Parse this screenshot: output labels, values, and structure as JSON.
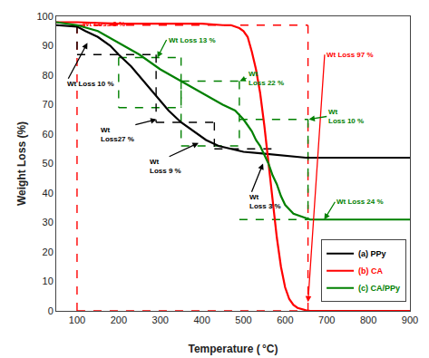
{
  "chart_data": {
    "type": "line",
    "xlabel": "Temperature ( °C)",
    "ylabel": "Weight Loss (%)",
    "xlim": [
      50,
      900
    ],
    "ylim": [
      0,
      100
    ],
    "xticks": [
      100,
      200,
      300,
      400,
      500,
      600,
      700,
      800,
      900
    ],
    "yticks": [
      0,
      10,
      20,
      30,
      40,
      50,
      60,
      70,
      80,
      90,
      100
    ],
    "grid": false,
    "legend": "lower right",
    "series": [
      {
        "name": "(a) PPy",
        "color": "black",
        "x": [
          50,
          100,
          120,
          150,
          180,
          200,
          230,
          260,
          290,
          320,
          350,
          380,
          410,
          440,
          470,
          500,
          540,
          580,
          620,
          650,
          700,
          800,
          900
        ],
        "values": [
          97,
          96.5,
          95,
          93,
          90,
          87,
          83,
          78,
          73,
          68,
          64,
          61,
          58,
          56,
          55,
          54,
          53.5,
          53,
          52.5,
          52,
          52,
          52,
          52
        ]
      },
      {
        "name": "(b) CA",
        "color": "red",
        "x": [
          50,
          100,
          200,
          300,
          400,
          450,
          470,
          490,
          500,
          510,
          520,
          530,
          540,
          550,
          560,
          570,
          580,
          590,
          600,
          610,
          620,
          630,
          640,
          650,
          660,
          670,
          900
        ],
        "values": [
          98,
          98,
          97.5,
          97.5,
          97.5,
          97,
          97,
          96,
          95,
          93,
          88,
          82,
          74,
          63,
          50,
          37,
          25,
          15,
          8,
          4,
          2,
          1,
          0.5,
          0.2,
          0,
          0,
          0
        ]
      },
      {
        "name": "(c) CA/PPy",
        "color": "green",
        "x": [
          50,
          100,
          150,
          200,
          250,
          300,
          350,
          400,
          450,
          480,
          500,
          510,
          520,
          530,
          540,
          550,
          560,
          570,
          580,
          590,
          600,
          620,
          640,
          660,
          680,
          700,
          750,
          900
        ],
        "values": [
          98,
          97,
          95,
          91,
          87,
          82,
          78,
          74,
          70,
          68,
          65,
          63,
          61,
          58,
          56,
          53,
          50,
          46,
          43,
          39,
          36,
          33,
          32,
          31,
          31,
          31,
          31,
          31
        ]
      }
    ],
    "segments": [
      {
        "color": "red",
        "line_style": "dashed",
        "x": [
          100,
          655
        ],
        "y": [
          97,
          97
        ]
      },
      {
        "color": "red",
        "line_style": "dashed",
        "x": [
          100,
          655
        ],
        "y": [
          0,
          0
        ]
      },
      {
        "color": "red",
        "line_style": "dashed",
        "x": [
          100,
          100
        ],
        "y": [
          0,
          97
        ]
      },
      {
        "color": "red",
        "line_style": "dashed",
        "x": [
          655,
          655
        ],
        "y": [
          0,
          97
        ]
      },
      {
        "color": "green",
        "line_style": "dashed",
        "x": [
          200,
          350
        ],
        "y": [
          86,
          86
        ]
      },
      {
        "color": "green",
        "line_style": "dashed",
        "x": [
          200,
          200
        ],
        "y": [
          86,
          69
        ]
      },
      {
        "color": "green",
        "line_style": "dashed",
        "x": [
          350,
          350
        ],
        "y": [
          86,
          69
        ]
      },
      {
        "color": "green",
        "line_style": "dashed",
        "x": [
          200,
          350
        ],
        "y": [
          69,
          69
        ]
      },
      {
        "color": "green",
        "line_style": "dashed",
        "x": [
          350,
          490
        ],
        "y": [
          78,
          78
        ]
      },
      {
        "color": "green",
        "line_style": "dashed",
        "x": [
          350,
          350
        ],
        "y": [
          78,
          56
        ]
      },
      {
        "color": "green",
        "line_style": "dashed",
        "x": [
          490,
          490
        ],
        "y": [
          78,
          56
        ]
      },
      {
        "color": "green",
        "line_style": "dashed",
        "x": [
          350,
          490
        ],
        "y": [
          56,
          56
        ]
      },
      {
        "color": "green",
        "line_style": "dashed",
        "x": [
          490,
          655
        ],
        "y": [
          65,
          65
        ]
      },
      {
        "color": "green",
        "line_style": "dashed",
        "x": [
          655,
          655
        ],
        "y": [
          65,
          31
        ]
      },
      {
        "color": "green",
        "line_style": "dashed",
        "x": [
          490,
          655
        ],
        "y": [
          31,
          31
        ]
      },
      {
        "color": "black",
        "line_style": "dashed",
        "x": [
          100,
          100
        ],
        "y": [
          97,
          87
        ]
      },
      {
        "color": "black",
        "line_style": "dashed",
        "x": [
          100,
          290
        ],
        "y": [
          87,
          87
        ]
      },
      {
        "color": "black",
        "line_style": "dashed",
        "x": [
          290,
          290
        ],
        "y": [
          87,
          64
        ]
      },
      {
        "color": "black",
        "line_style": "dashed",
        "x": [
          290,
          430
        ],
        "y": [
          64,
          64
        ]
      },
      {
        "color": "black",
        "line_style": "dashed",
        "x": [
          430,
          430
        ],
        "y": [
          64,
          55
        ]
      },
      {
        "color": "black",
        "line_style": "dashed",
        "x": [
          430,
          570
        ],
        "y": [
          55,
          55
        ]
      }
    ],
    "annotations": [
      {
        "text": "Wt Loss 3 %",
        "color": "red",
        "x": 188,
        "y": 97.3,
        "text_x": 108,
        "text_y": 97.3
      },
      {
        "text": "Wt Loss 97 %",
        "color": "red",
        "x": 655,
        "y": 3,
        "text_x": 695,
        "text_y": 87
      },
      {
        "text": "Wt Loss 13 %",
        "color": "green",
        "x": 293,
        "y": 86,
        "text_x": 315,
        "text_y": 92
      },
      {
        "text": "Wt Loss 10 %",
        "color": "black",
        "x": 125,
        "y": 91,
        "text_x": 72,
        "text_y": 77
      },
      {
        "text": "Wt\nLoss27 %",
        "color": "black",
        "x": 291,
        "y": 65,
        "text_x": 152,
        "text_y": 60
      },
      {
        "text": "Wt\nLoss 9 %",
        "color": "black",
        "x": 392,
        "y": 57,
        "text_x": 270,
        "text_y": 49
      },
      {
        "text": "Wt\nLoss 22 %",
        "color": "green",
        "x": 491,
        "y": 78,
        "text_x": 507,
        "text_y": 79
      },
      {
        "text": "Wt\nLoss 10 %",
        "color": "green",
        "x": 657,
        "y": 65,
        "text_x": 700,
        "text_y": 66
      },
      {
        "text": "Wt\nLoss 3 %",
        "color": "black",
        "x": 547,
        "y": 50,
        "text_x": 510,
        "text_y": 37
      },
      {
        "text": "Wt Loss 24 %",
        "color": "green",
        "x": 694,
        "y": 31,
        "text_x": 720,
        "text_y": 37
      }
    ]
  }
}
